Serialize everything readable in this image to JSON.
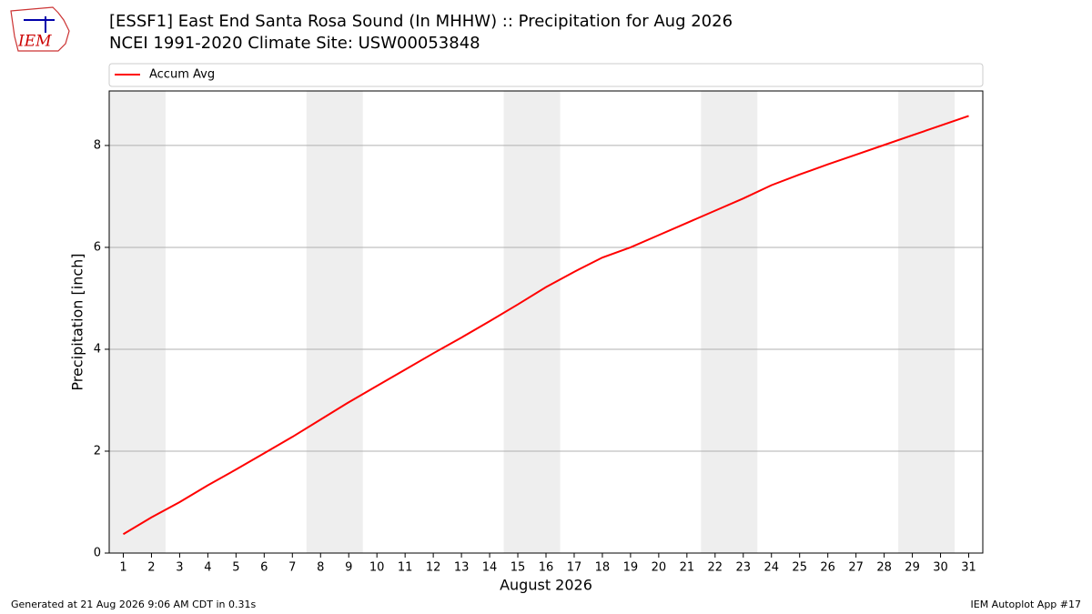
{
  "chart_data": {
    "type": "line",
    "title": "[ESSF1] East End Santa Rosa Sound (In MHHW) :: Precipitation for Aug 2026",
    "subtitle": "NCEI 1991-2020 Climate Site: USW00053848",
    "logo_text": "IEM",
    "x_label": "August 2026",
    "y_label": "Precipitation [inch]",
    "x": [
      1,
      2,
      3,
      4,
      5,
      6,
      7,
      8,
      9,
      10,
      11,
      12,
      13,
      14,
      15,
      16,
      17,
      18,
      19,
      20,
      21,
      22,
      23,
      24,
      25,
      26,
      27,
      28,
      29,
      30,
      31
    ],
    "series": [
      {
        "name": "Accum Avg",
        "color": "#ff0000",
        "values": [
          0.37,
          0.7,
          1.0,
          1.33,
          1.64,
          1.96,
          2.28,
          2.62,
          2.96,
          3.28,
          3.6,
          3.92,
          4.23,
          4.55,
          4.88,
          5.22,
          5.52,
          5.8,
          6.0,
          6.24,
          6.48,
          6.72,
          6.96,
          7.22,
          7.43,
          7.63,
          7.82,
          8.01,
          8.2,
          8.39,
          8.58
        ]
      }
    ],
    "shaded_spans": [
      [
        0.5,
        2.5
      ],
      [
        7.5,
        9.5
      ],
      [
        14.5,
        16.5
      ],
      [
        21.5,
        23.5
      ],
      [
        28.5,
        30.5
      ]
    ],
    "shade_color": "#eeeeee",
    "xlim": [
      0.5,
      31.5
    ],
    "xticks": [
      1,
      2,
      3,
      4,
      5,
      6,
      7,
      8,
      9,
      10,
      11,
      12,
      13,
      14,
      15,
      16,
      17,
      18,
      19,
      20,
      21,
      22,
      23,
      24,
      25,
      26,
      27,
      28,
      29,
      30,
      31
    ],
    "ylim": [
      0,
      9.07
    ],
    "yticks": [
      0,
      2,
      4,
      6,
      8
    ],
    "grid": true,
    "footer_left": "Generated at 21 Aug 2026 9:06 AM CDT in 0.31s",
    "footer_right": "IEM Autoplot App #17"
  }
}
